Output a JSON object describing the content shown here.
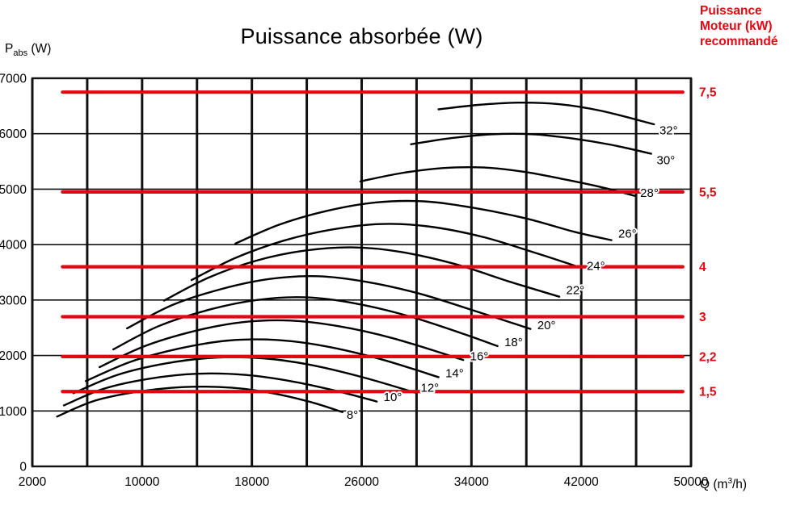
{
  "header": {
    "title": "Puissance absorbée (W)",
    "y_axis": {
      "symbol": "P",
      "subscript": "abs",
      "unit": " (W)"
    },
    "x_axis": {
      "prefix": "Q (m",
      "superscript": "3",
      "suffix": "/h)"
    },
    "right_note_lines": {
      "0": "Puissance",
      "1": "Moteur (kW)",
      "2": "recommandé"
    }
  },
  "colors": {
    "curve": "#000000",
    "grid": "#111111",
    "motor_red": "#e30613"
  },
  "chart_data": {
    "type": "line",
    "title": "Puissance absorbée (W)",
    "xlabel": "Q (m³/h)",
    "ylabel": "Pabs (W)",
    "xlim": [
      2000,
      50000
    ],
    "ylim": [
      0,
      7000
    ],
    "x_ticks": [
      2000,
      10000,
      18000,
      26000,
      34000,
      42000,
      50000
    ],
    "x_gridline_step": 4000,
    "y_ticks": [
      0,
      1000,
      2000,
      3000,
      4000,
      5000,
      6000,
      7000
    ],
    "grid": true,
    "legend": "curve labels = blade pitch angle, red lines = recommended motor power (kW)",
    "curve_color": "#000000",
    "motor_line_color": "#e30613",
    "motor_line_x_range": [
      4200,
      49400
    ],
    "motor_lines": [
      {
        "label": "7,5",
        "kw": 7.5,
        "p_abs_w": 6750
      },
      {
        "label": "5,5",
        "kw": 5.5,
        "p_abs_w": 4950
      },
      {
        "label": "4",
        "kw": 4,
        "p_abs_w": 3600
      },
      {
        "label": "3",
        "kw": 3,
        "p_abs_w": 2700
      },
      {
        "label": "2,2",
        "kw": 2.2,
        "p_abs_w": 1980
      },
      {
        "label": "1,5",
        "kw": 1.5,
        "p_abs_w": 1350
      }
    ],
    "series": [
      {
        "name": "8°",
        "angle_deg": 8,
        "points": [
          [
            3800,
            900
          ],
          [
            6500,
            1180
          ],
          [
            9500,
            1340
          ],
          [
            13000,
            1430
          ],
          [
            16500,
            1420
          ],
          [
            19500,
            1320
          ],
          [
            22300,
            1160
          ],
          [
            24600,
            980
          ]
        ],
        "label_at": [
          24900,
          930
        ]
      },
      {
        "name": "10°",
        "angle_deg": 10,
        "points": [
          [
            4300,
            1100
          ],
          [
            7200,
            1400
          ],
          [
            10500,
            1580
          ],
          [
            14000,
            1670
          ],
          [
            17500,
            1650
          ],
          [
            21000,
            1530
          ],
          [
            24500,
            1340
          ],
          [
            27100,
            1170
          ]
        ],
        "label_at": [
          27600,
          1250
        ]
      },
      {
        "name": "12°",
        "angle_deg": 12,
        "points": [
          [
            5000,
            1320
          ],
          [
            8200,
            1650
          ],
          [
            11800,
            1860
          ],
          [
            15300,
            1960
          ],
          [
            18800,
            1950
          ],
          [
            22300,
            1830
          ],
          [
            26200,
            1600
          ],
          [
            29900,
            1330
          ]
        ],
        "label_at": [
          30300,
          1420
        ]
      },
      {
        "name": "14°",
        "angle_deg": 14,
        "points": [
          [
            5900,
            1540
          ],
          [
            9200,
            1890
          ],
          [
            12800,
            2130
          ],
          [
            16300,
            2270
          ],
          [
            19800,
            2280
          ],
          [
            23300,
            2170
          ],
          [
            27300,
            1940
          ],
          [
            31600,
            1610
          ]
        ],
        "label_at": [
          32100,
          1680
        ]
      },
      {
        "name": "16°",
        "angle_deg": 16,
        "points": [
          [
            6900,
            1790
          ],
          [
            10200,
            2170
          ],
          [
            13800,
            2440
          ],
          [
            17300,
            2600
          ],
          [
            20800,
            2630
          ],
          [
            24300,
            2530
          ],
          [
            28300,
            2310
          ],
          [
            33400,
            1920
          ]
        ],
        "label_at": [
          33900,
          1990
        ]
      },
      {
        "name": "18°",
        "angle_deg": 18,
        "points": [
          [
            7900,
            2110
          ],
          [
            11200,
            2530
          ],
          [
            14800,
            2820
          ],
          [
            18300,
            3000
          ],
          [
            21800,
            3050
          ],
          [
            25300,
            2950
          ],
          [
            29300,
            2720
          ],
          [
            33300,
            2400
          ],
          [
            35900,
            2170
          ]
        ],
        "label_at": [
          36400,
          2240
        ]
      },
      {
        "name": "20°",
        "angle_deg": 20,
        "points": [
          [
            8900,
            2490
          ],
          [
            12200,
            2910
          ],
          [
            15800,
            3200
          ],
          [
            19300,
            3380
          ],
          [
            22800,
            3430
          ],
          [
            26300,
            3330
          ],
          [
            30300,
            3110
          ],
          [
            34300,
            2800
          ],
          [
            38300,
            2480
          ]
        ],
        "label_at": [
          38800,
          2550
        ]
      },
      {
        "name": "22°",
        "angle_deg": 22,
        "points": [
          [
            11600,
            2990
          ],
          [
            14800,
            3400
          ],
          [
            18300,
            3710
          ],
          [
            21800,
            3890
          ],
          [
            25300,
            3950
          ],
          [
            28800,
            3870
          ],
          [
            32800,
            3650
          ],
          [
            36800,
            3330
          ],
          [
            40400,
            3060
          ]
        ],
        "label_at": [
          40900,
          3180
        ]
      },
      {
        "name": "24°",
        "angle_deg": 24,
        "points": [
          [
            13600,
            3360
          ],
          [
            16800,
            3760
          ],
          [
            20300,
            4070
          ],
          [
            23800,
            4270
          ],
          [
            27300,
            4370
          ],
          [
            30800,
            4330
          ],
          [
            34800,
            4140
          ],
          [
            38800,
            3840
          ],
          [
            41900,
            3590
          ]
        ],
        "label_at": [
          42400,
          3620
        ]
      },
      {
        "name": "26°",
        "angle_deg": 26,
        "points": [
          [
            16800,
            4020
          ],
          [
            20000,
            4360
          ],
          [
            23500,
            4610
          ],
          [
            27000,
            4760
          ],
          [
            30500,
            4780
          ],
          [
            34000,
            4670
          ],
          [
            38000,
            4470
          ],
          [
            41500,
            4230
          ],
          [
            44200,
            4080
          ]
        ],
        "label_at": [
          44700,
          4200
        ]
      },
      {
        "name": "28°",
        "angle_deg": 28,
        "points": [
          [
            25900,
            5140
          ],
          [
            28900,
            5290
          ],
          [
            31900,
            5380
          ],
          [
            34900,
            5390
          ],
          [
            37900,
            5310
          ],
          [
            40900,
            5170
          ],
          [
            43400,
            5040
          ],
          [
            45900,
            4880
          ]
        ],
        "label_at": [
          46300,
          4930
        ]
      },
      {
        "name": "30°",
        "angle_deg": 30,
        "points": [
          [
            29600,
            5810
          ],
          [
            32500,
            5920
          ],
          [
            35500,
            5990
          ],
          [
            38500,
            5990
          ],
          [
            41500,
            5910
          ],
          [
            44200,
            5800
          ],
          [
            47100,
            5640
          ]
        ],
        "label_at": [
          47500,
          5520
        ]
      },
      {
        "name": "32°",
        "angle_deg": 32,
        "points": [
          [
            31600,
            6440
          ],
          [
            34500,
            6520
          ],
          [
            37500,
            6560
          ],
          [
            40500,
            6530
          ],
          [
            43500,
            6410
          ],
          [
            47300,
            6170
          ]
        ],
        "label_at": [
          47700,
          6060
        ]
      }
    ]
  }
}
